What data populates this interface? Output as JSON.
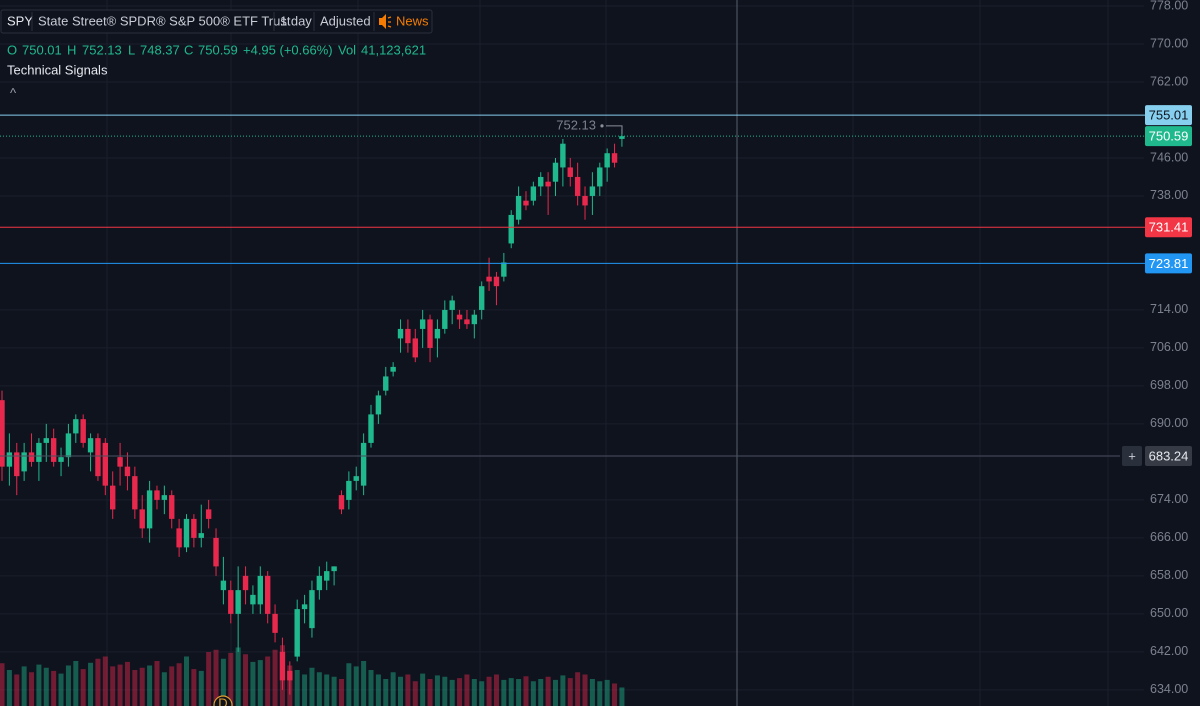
{
  "header": {
    "symbol": "SPY",
    "name": "State Street® SPDR® S&P 500® ETF Trust",
    "interval": "1 day",
    "adjustment": "Adjusted",
    "news": "News",
    "ohlc_labels": [
      "O",
      "H",
      "L",
      "C"
    ],
    "change": "+4.95 (+0.66%)",
    "volume_label": "Vol",
    "volume": "41,123,621",
    "signals": "Technical Signals",
    "collapse": "^"
  },
  "chart_data": {
    "type": "candlestick",
    "up_color": "#1fb98d",
    "down_color": "#e8294d",
    "open": [
      695,
      681,
      684,
      680,
      684,
      682,
      686,
      687,
      682,
      683,
      688,
      691,
      684,
      687,
      686,
      677,
      683,
      681,
      679,
      672,
      668,
      676,
      674,
      675,
      668,
      664,
      670,
      666,
      672,
      666,
      655,
      655,
      650,
      658,
      652,
      652,
      658,
      650,
      642,
      638,
      641,
      651,
      647,
      655,
      657,
      659,
      675,
      674,
      678,
      677,
      686,
      692,
      697,
      701,
      708,
      710,
      708,
      710,
      712,
      708,
      710,
      714,
      713,
      712,
      711,
      714,
      721,
      721,
      721,
      728,
      733,
      737,
      737,
      740,
      741,
      741,
      744,
      744,
      742,
      738,
      738,
      740,
      744,
      747,
      750.01
    ],
    "high": [
      697,
      688,
      686,
      686,
      688,
      687,
      690,
      689,
      685,
      690,
      692,
      692,
      688,
      688,
      687,
      680,
      686,
      684,
      681,
      675,
      678,
      677,
      677,
      676,
      670,
      671,
      671,
      673,
      674,
      668,
      662,
      657,
      660,
      660,
      656,
      660,
      659,
      652,
      645,
      640,
      653,
      654,
      657,
      660,
      661,
      660,
      676,
      680,
      681,
      688,
      694,
      697,
      702,
      703,
      712,
      712,
      710,
      714,
      713,
      712,
      716,
      717,
      714,
      714,
      714,
      720,
      725,
      722,
      726,
      735,
      740,
      739,
      741,
      743,
      743,
      746,
      750,
      746,
      745,
      740,
      743,
      745,
      748,
      749,
      752.13
    ],
    "low": [
      678,
      677,
      675,
      678,
      681,
      678,
      682,
      681,
      679,
      681,
      686,
      685,
      680,
      678,
      675,
      670,
      677,
      676,
      670,
      666,
      665,
      672,
      671,
      668,
      662,
      663,
      664,
      664,
      668,
      658,
      652,
      648,
      642,
      652,
      650,
      650,
      648,
      644,
      634,
      633,
      640,
      648,
      645,
      653,
      655,
      656,
      671,
      672,
      676,
      675,
      685,
      690,
      696,
      700,
      705,
      705,
      703,
      706,
      703,
      704,
      709,
      711,
      710,
      710,
      708,
      712,
      718,
      715,
      720,
      727,
      732,
      735,
      736,
      738,
      734,
      738,
      740,
      740,
      736,
      733,
      734,
      738,
      741,
      744,
      748.37
    ],
    "close": [
      681,
      684,
      679,
      684,
      682,
      686,
      687,
      682,
      683,
      688,
      691,
      686,
      687,
      679,
      677,
      672,
      681,
      679,
      672,
      668,
      676,
      674,
      675,
      670,
      664,
      670,
      666,
      667,
      670,
      660,
      657,
      650,
      655,
      655,
      654,
      658,
      650,
      646,
      636,
      636,
      651,
      652,
      655,
      658,
      659,
      660,
      672,
      678,
      679,
      686,
      692,
      696,
      700,
      702,
      710,
      707,
      704,
      712,
      706,
      710,
      714,
      716,
      712,
      711,
      713,
      719,
      720,
      719,
      724,
      734,
      738,
      736,
      740,
      742,
      740,
      745,
      749,
      742,
      738,
      736,
      740,
      744,
      747,
      745,
      750.59
    ],
    "volumes": [
      95,
      80,
      70,
      88,
      75,
      92,
      85,
      78,
      72,
      90,
      100,
      82,
      96,
      105,
      110,
      88,
      92,
      98,
      80,
      85,
      90,
      100,
      75,
      88,
      95,
      110,
      82,
      78,
      120,
      125,
      105,
      118,
      130,
      115,
      98,
      102,
      110,
      125,
      135,
      90,
      80,
      70,
      85,
      75,
      70,
      65,
      60,
      95,
      88,
      100,
      80,
      70,
      60,
      75,
      65,
      70,
      55,
      72,
      60,
      68,
      65,
      58,
      62,
      70,
      60,
      55,
      65,
      70,
      58,
      62,
      60,
      66,
      55,
      60,
      65,
      58,
      68,
      62,
      75,
      70,
      60,
      55,
      58,
      50,
      41.123621
    ],
    "ylim": [
      630.6,
      779.26
    ],
    "yticks": [
      {
        "value": 778,
        "label": "778.00"
      },
      {
        "value": 770,
        "label": "770.00"
      },
      {
        "value": 762,
        "label": "762.00"
      },
      {
        "value": 746,
        "label": "746.00"
      },
      {
        "value": 738,
        "label": "738.00"
      },
      {
        "value": 714,
        "label": "714.00"
      },
      {
        "value": 706,
        "label": "706.00"
      },
      {
        "value": 698,
        "label": "698.00"
      },
      {
        "value": 690,
        "label": "690.00"
      },
      {
        "value": 674,
        "label": "674.00"
      },
      {
        "value": 666,
        "label": "666.00"
      },
      {
        "value": 658,
        "label": "658.00"
      },
      {
        "value": 650,
        "label": "650.00"
      },
      {
        "value": 642,
        "label": "642.00"
      },
      {
        "value": 634,
        "label": "634.00"
      }
    ],
    "price_lines": [
      {
        "value": 755.01,
        "color": "#86cfee"
      },
      {
        "value": 731.41,
        "color": "#f23645"
      },
      {
        "value": 723.81,
        "color": "#2196f3"
      }
    ],
    "crosshair": 683.24,
    "crosshair_button": "+",
    "event_marker": "D",
    "grid": true
  }
}
